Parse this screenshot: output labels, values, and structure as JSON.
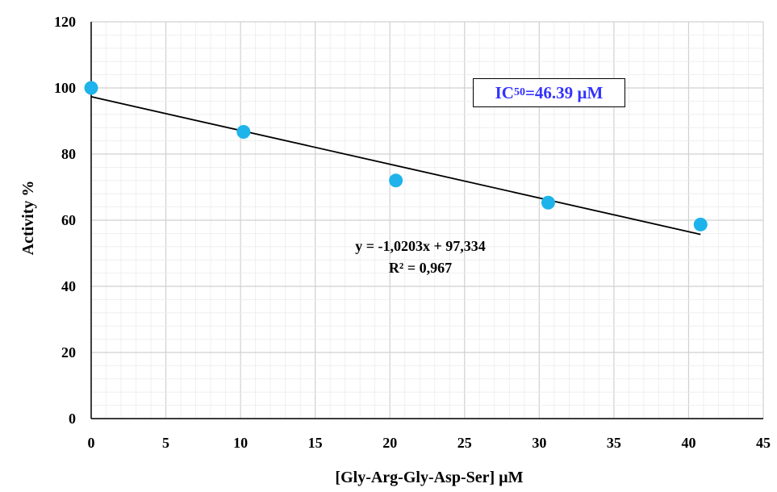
{
  "chart_data": {
    "type": "scatter",
    "xlabel": "[Gly-Arg-Gly-Asp-Ser] µM",
    "ylabel": "Activity %",
    "xlim": [
      0,
      45
    ],
    "ylim": [
      0,
      120
    ],
    "x_ticks": [
      0,
      5,
      10,
      15,
      20,
      25,
      30,
      35,
      40,
      45
    ],
    "y_ticks": [
      0,
      20,
      40,
      60,
      80,
      100,
      120
    ],
    "grid": "major and minor",
    "points": [
      {
        "x": 0,
        "y": 100
      },
      {
        "x": 10.2,
        "y": 86.7
      },
      {
        "x": 20.4,
        "y": 72
      },
      {
        "x": 30.6,
        "y": 65.3
      },
      {
        "x": 40.8,
        "y": 58.7
      }
    ],
    "trendline": {
      "slope": -1.0203,
      "intercept": 97.334,
      "x_range": [
        0,
        40.8
      ]
    },
    "equation_text": "y = -1,0203x + 97,334",
    "r2_text": "R² = 0,967",
    "annotation": {
      "ic_label": "IC",
      "ic_sub": "50",
      "ic_value": "=46.39 µM"
    },
    "colors": {
      "point": "#1eb3ea",
      "line": "#000000",
      "annotation": "#3333ff",
      "grid": "#d9d9d9"
    }
  }
}
